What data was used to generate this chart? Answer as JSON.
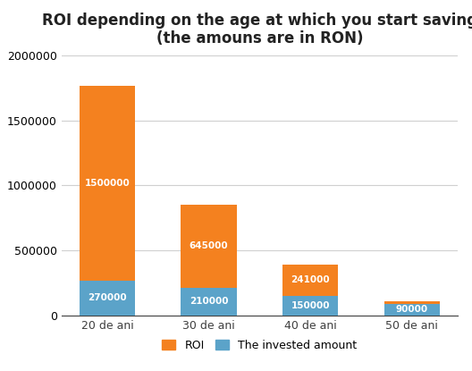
{
  "title": "ROI depending on the age at which you start saving\n(the amouns are in RON)",
  "categories": [
    "20 de ani",
    "30 de ani",
    "40 de ani",
    "50 de ani"
  ],
  "invested": [
    270000,
    210000,
    150000,
    90000
  ],
  "roi": [
    1500000,
    645000,
    241000,
    20000
  ],
  "roi_color": "#F4811F",
  "invested_color": "#5BA3C9",
  "ylim": [
    0,
    2000000
  ],
  "yticks": [
    0,
    500000,
    1000000,
    1500000,
    2000000
  ],
  "background_color": "#FFFFFF",
  "title_fontsize": 12,
  "label_fontsize": 7.5,
  "legend_labels": [
    "ROI",
    "The invested amount"
  ]
}
